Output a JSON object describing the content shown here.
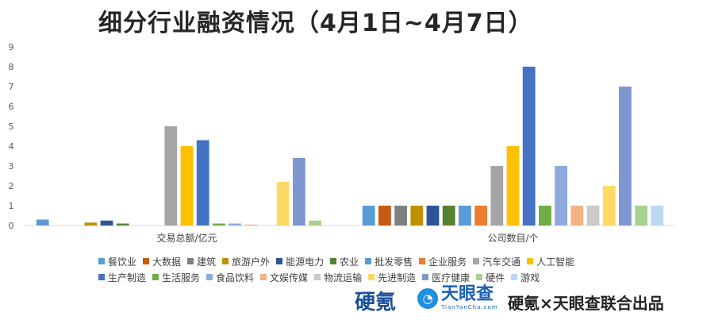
{
  "title": "细分行业融资情况（4月1日~4月7日）",
  "brands": {
    "logo_a": "硬氪",
    "logo_b_cn": "天眼查",
    "logo_b_en": "TianYanCha.com",
    "footer_text": "硬氪×天眼查联合出品"
  },
  "chart_data": {
    "type": "bar",
    "title": "细分行业融资情况（4月1日~4月7日）",
    "categories": [
      "交易总额/亿元",
      "公司数目/个"
    ],
    "ylim": [
      0,
      9
    ],
    "yticks": [
      0,
      1,
      2,
      3,
      4,
      5,
      6,
      7,
      8,
      9
    ],
    "grid": false,
    "legend_position": "bottom",
    "series": [
      {
        "name": "餐饮业",
        "color": "#5b9bd5",
        "values": [
          0.3,
          1
        ]
      },
      {
        "name": "大数据",
        "color": "#c55a11",
        "values": [
          0,
          1
        ]
      },
      {
        "name": "建筑",
        "color": "#7f7f7f",
        "values": [
          0,
          1
        ]
      },
      {
        "name": "旅游户外",
        "color": "#bf9000",
        "values": [
          0.15,
          1
        ]
      },
      {
        "name": "能源电力",
        "color": "#2f5597",
        "values": [
          0.25,
          1
        ]
      },
      {
        "name": "农业",
        "color": "#548235",
        "values": [
          0.1,
          1
        ]
      },
      {
        "name": "批发零售",
        "color": "#5b9bd5",
        "values": [
          0,
          1
        ]
      },
      {
        "name": "企业服务",
        "color": "#ed7d31",
        "values": [
          0,
          1
        ]
      },
      {
        "name": "汽车交通",
        "color": "#a5a5a5",
        "values": [
          5,
          3
        ]
      },
      {
        "name": "人工智能",
        "color": "#ffc000",
        "values": [
          4,
          4
        ]
      },
      {
        "name": "生产制造",
        "color": "#4472c4",
        "values": [
          4.3,
          8
        ]
      },
      {
        "name": "生活服务",
        "color": "#70ad47",
        "values": [
          0.1,
          1
        ]
      },
      {
        "name": "食品饮料",
        "color": "#8faadc",
        "values": [
          0.1,
          3
        ]
      },
      {
        "name": "文娱传媒",
        "color": "#f4b183",
        "values": [
          0.05,
          1
        ]
      },
      {
        "name": "物流运输",
        "color": "#c9c9c9",
        "values": [
          0,
          1
        ]
      },
      {
        "name": "先进制造",
        "color": "#ffd966",
        "values": [
          2.2,
          2
        ]
      },
      {
        "name": "医疗健康",
        "color": "#7f96d0",
        "values": [
          3.4,
          7
        ]
      },
      {
        "name": "硬件",
        "color": "#a9d18e",
        "values": [
          0.25,
          1
        ]
      },
      {
        "name": "游戏",
        "color": "#bdd7ee",
        "values": [
          0,
          1
        ]
      }
    ]
  }
}
